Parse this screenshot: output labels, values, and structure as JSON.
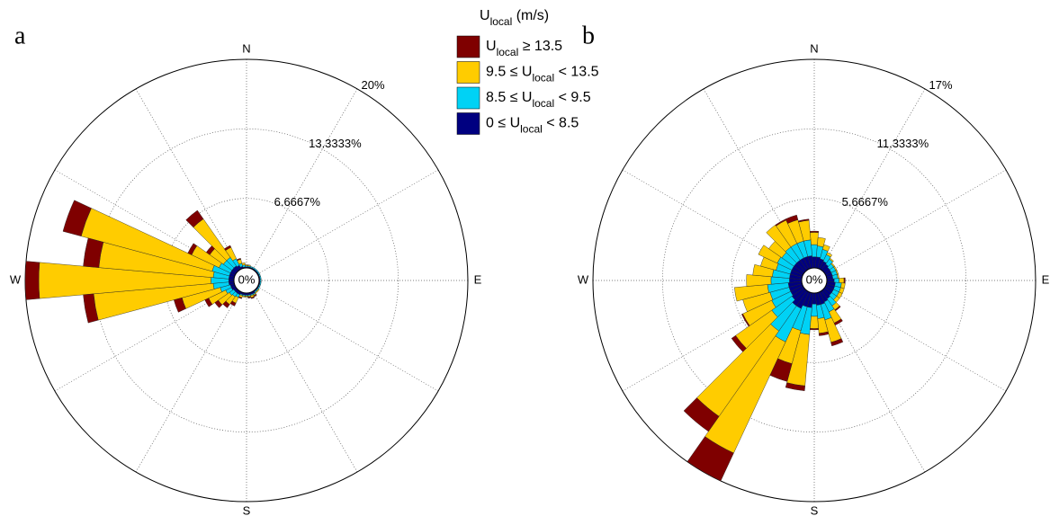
{
  "chart_data": [
    {
      "type": "windrose",
      "panel_label": "a",
      "legend_title": "Ulocal (m/s)",
      "directions": [
        0,
        10,
        20,
        30,
        40,
        50,
        60,
        70,
        80,
        90,
        100,
        110,
        120,
        130,
        140,
        150,
        160,
        170,
        180,
        190,
        200,
        210,
        220,
        230,
        240,
        250,
        260,
        270,
        280,
        290,
        300,
        310,
        320,
        330,
        340,
        350
      ],
      "rlim": [
        0,
        20
      ],
      "rticks": [
        {
          "value": 0,
          "label": "0%"
        },
        {
          "value": 6.6667,
          "label": "6.6667%"
        },
        {
          "value": 13.3333,
          "label": "13.3333%"
        },
        {
          "value": 20,
          "label": "20%"
        }
      ],
      "thetaticks": [
        0,
        30,
        60,
        90,
        120,
        150,
        180,
        210,
        240,
        270,
        300,
        330
      ],
      "direction_labels": [
        {
          "value": 0,
          "label": "N"
        },
        {
          "value": 90,
          "label": "E"
        },
        {
          "value": 180,
          "label": "S"
        },
        {
          "value": 270,
          "label": "W"
        }
      ],
      "series": [
        {
          "name": "Ulocal ≥ 13.5",
          "color": "#7f0000",
          "values": [
            0,
            0,
            0,
            0,
            0,
            0,
            0,
            0,
            0,
            0,
            0,
            0,
            0,
            0,
            0,
            0.1,
            0.1,
            0.1,
            0,
            0,
            0.1,
            0.3,
            0.4,
            0.4,
            0.4,
            0.8,
            1.0,
            1.3,
            1.5,
            1.8,
            0.4,
            0.4,
            1.0,
            0.2,
            0.1,
            0
          ]
        },
        {
          "name": "9.5 ≤ Ulocal < 13.5",
          "color": "#ffcc00",
          "values": [
            0.1,
            0.1,
            0,
            0,
            0,
            0,
            0,
            0,
            0,
            0,
            0,
            0,
            0,
            0.1,
            0.1,
            0.1,
            0.2,
            0.1,
            0.1,
            0.1,
            0.2,
            0.6,
            0.9,
            1.3,
            1.8,
            3.8,
            11.5,
            16.5,
            11.0,
            13.0,
            2.9,
            1.6,
            4.5,
            1.2,
            0.4,
            0.2
          ]
        },
        {
          "name": "8.5 ≤ Ulocal < 9.5",
          "color": "#00d2f5",
          "values": [
            0.1,
            0.1,
            0.1,
            0.1,
            0.1,
            0.1,
            0.1,
            0.1,
            0.1,
            0.1,
            0.1,
            0.1,
            0.1,
            0.1,
            0.1,
            0.1,
            0.1,
            0.1,
            0.1,
            0.1,
            0.1,
            0.3,
            0.4,
            0.5,
            0.6,
            1.0,
            1.5,
            1.7,
            1.5,
            1.7,
            1.2,
            1.0,
            1.0,
            0.7,
            0.3,
            0.2
          ]
        },
        {
          "name": "0 ≤ Ulocal < 8.5",
          "color": "#000080",
          "values": [
            0.1,
            0.1,
            0.1,
            0.1,
            0.1,
            0.1,
            0.1,
            0.1,
            0.1,
            0.1,
            0.1,
            0.1,
            0.1,
            0.1,
            0.1,
            0.2,
            0.2,
            0.2,
            0.2,
            0.2,
            0.2,
            0.3,
            0.3,
            0.3,
            0.4,
            0.4,
            0.5,
            0.5,
            0.5,
            0.5,
            0.5,
            0.5,
            0.5,
            0.4,
            0.2,
            0.1
          ]
        }
      ]
    },
    {
      "type": "windrose",
      "panel_label": "b",
      "directions": [
        0,
        10,
        20,
        30,
        40,
        50,
        60,
        70,
        80,
        90,
        100,
        110,
        120,
        130,
        140,
        150,
        160,
        170,
        180,
        190,
        200,
        210,
        220,
        230,
        240,
        250,
        260,
        270,
        280,
        290,
        300,
        310,
        320,
        330,
        340,
        350
      ],
      "rlim": [
        0,
        17
      ],
      "rticks": [
        {
          "value": 0,
          "label": "0%"
        },
        {
          "value": 5.6667,
          "label": "5.6667%"
        },
        {
          "value": 11.3333,
          "label": "11.3333%"
        },
        {
          "value": 17,
          "label": "17%"
        }
      ],
      "thetaticks": [
        0,
        30,
        60,
        90,
        120,
        150,
        180,
        210,
        240,
        270,
        300,
        330
      ],
      "direction_labels": [
        {
          "value": 0,
          "label": "N"
        },
        {
          "value": 90,
          "label": "E"
        },
        {
          "value": 180,
          "label": "S"
        },
        {
          "value": 270,
          "label": "W"
        }
      ],
      "series": [
        {
          "name": "Ulocal ≥ 13.5",
          "color": "#7f0000",
          "values": [
            0.1,
            0,
            0,
            0,
            0,
            0,
            0,
            0,
            0,
            0.1,
            0,
            0,
            0,
            0,
            0.1,
            0.2,
            0.3,
            0.2,
            0.1,
            0.4,
            1.5,
            2.5,
            1.5,
            0.4,
            0.1,
            0,
            0,
            0,
            0,
            0,
            0,
            0,
            0,
            0.1,
            0.4,
            0.1
          ]
        },
        {
          "name": "9.5 ≤ Ulocal < 13.5",
          "color": "#ffcc00",
          "values": [
            1.0,
            0.7,
            0.4,
            0.2,
            0.1,
            0.1,
            0.1,
            0.1,
            0.1,
            0.4,
            0.3,
            0.3,
            0.3,
            0.3,
            0.4,
            1.0,
            1.9,
            1.2,
            1.0,
            4.2,
            2.8,
            10.0,
            8.5,
            3.6,
            2.6,
            2.3,
            2.7,
            2.0,
            1.6,
            1.3,
            1.7,
            1.3,
            2.2,
            2.1,
            1.8,
            1.6
          ]
        },
        {
          "name": "8.5 ≤ Ulocal < 9.5",
          "color": "#00d2f5",
          "values": [
            1.0,
            0.9,
            0.8,
            0.6,
            0.5,
            0.4,
            0.4,
            0.4,
            0.4,
            0.4,
            0.5,
            0.5,
            0.5,
            0.5,
            0.7,
            0.9,
            1.3,
            1.1,
            1.0,
            2.2,
            2.0,
            3.0,
            2.5,
            2.0,
            1.7,
            1.6,
            1.7,
            1.5,
            1.4,
            1.2,
            1.3,
            1.2,
            1.3,
            1.3,
            1.3,
            1.3
          ]
        },
        {
          "name": "0 ≤ Ulocal < 8.5",
          "color": "#000080",
          "values": [
            0.9,
            0.9,
            0.8,
            0.7,
            0.6,
            0.5,
            0.5,
            0.5,
            0.5,
            0.6,
            0.7,
            0.7,
            0.7,
            0.7,
            0.8,
            0.9,
            1.0,
            1.0,
            0.9,
            1.2,
            1.2,
            1.5,
            1.5,
            1.2,
            1.1,
            1.1,
            1.1,
            1.0,
            1.0,
            1.0,
            1.0,
            1.0,
            1.0,
            1.0,
            1.0,
            1.0
          ]
        }
      ]
    }
  ]
}
